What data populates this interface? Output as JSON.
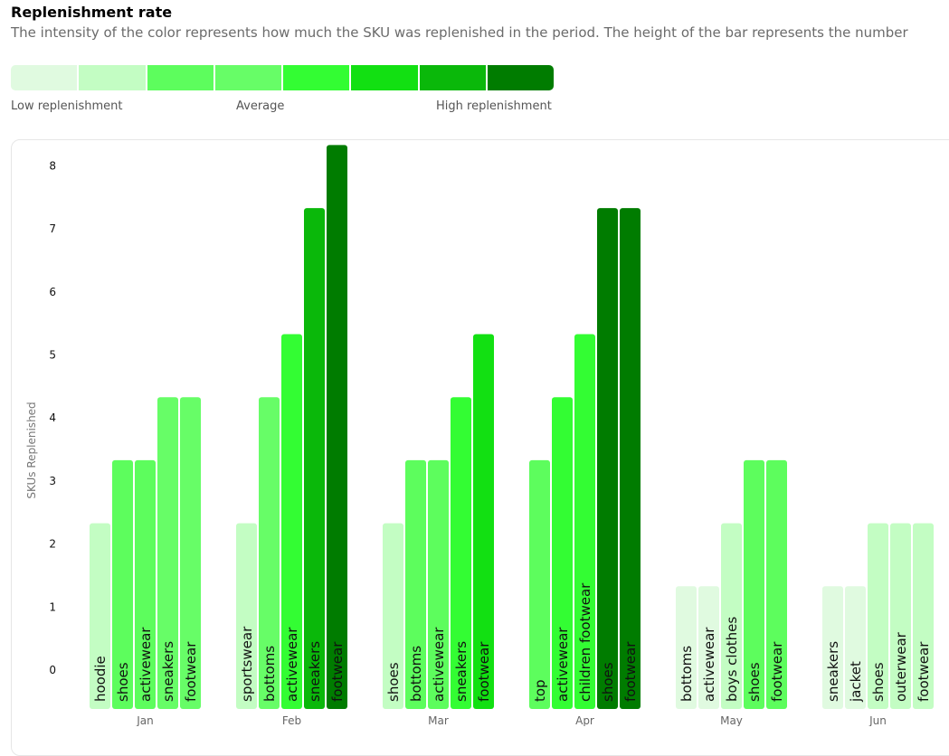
{
  "header": {
    "title": "Replenishment rate",
    "subtitle": "The intensity of the color represents how much the SKU was replenished in the period. The height of the bar represents the number"
  },
  "legend": {
    "colors": [
      "#e0fae0",
      "#c3fdc3",
      "#5dfd5d",
      "#67fd67",
      "#33fd33",
      "#12e012",
      "#0ab80a",
      "#007c00"
    ],
    "low_label": "Low replenishment",
    "mid_label": "Average",
    "high_label": "High replenishment"
  },
  "chart_data": {
    "type": "bar",
    "ylabel": "SKUs Replenished",
    "yticks": [
      0,
      1,
      2,
      3,
      4,
      5,
      6,
      7,
      8
    ],
    "ylim": [
      0,
      8
    ],
    "groups": [
      {
        "month": "Jan",
        "bars": [
          {
            "label": "hoodie",
            "value": 2,
            "color": "#c3fdc3"
          },
          {
            "label": "shoes",
            "value": 3,
            "color": "#5dfd5d"
          },
          {
            "label": "activewear",
            "value": 3,
            "color": "#5dfd5d"
          },
          {
            "label": "sneakers",
            "value": 4,
            "color": "#67fd67"
          },
          {
            "label": "footwear",
            "value": 4,
            "color": "#67fd67"
          }
        ]
      },
      {
        "month": "Feb",
        "bars": [
          {
            "label": "sportswear",
            "value": 2,
            "color": "#c3fdc3"
          },
          {
            "label": "bottoms",
            "value": 4,
            "color": "#67fd67"
          },
          {
            "label": "activewear",
            "value": 5,
            "color": "#33fd33"
          },
          {
            "label": "sneakers",
            "value": 7,
            "color": "#0ab80a"
          },
          {
            "label": "footwear",
            "value": 8,
            "color": "#007c00"
          }
        ]
      },
      {
        "month": "Mar",
        "bars": [
          {
            "label": "shoes",
            "value": 2,
            "color": "#c3fdc3"
          },
          {
            "label": "bottoms",
            "value": 3,
            "color": "#5dfd5d"
          },
          {
            "label": "activewear",
            "value": 3,
            "color": "#5dfd5d"
          },
          {
            "label": "sneakers",
            "value": 4,
            "color": "#33fd33"
          },
          {
            "label": "footwear",
            "value": 5,
            "color": "#12e012"
          }
        ]
      },
      {
        "month": "Apr",
        "bars": [
          {
            "label": "top",
            "value": 3,
            "color": "#5dfd5d"
          },
          {
            "label": "activewear",
            "value": 4,
            "color": "#33fd33"
          },
          {
            "label": "children footwear",
            "value": 5,
            "color": "#33fd33"
          },
          {
            "label": "shoes",
            "value": 7,
            "color": "#007c00"
          },
          {
            "label": "footwear",
            "value": 7,
            "color": "#007c00"
          }
        ]
      },
      {
        "month": "May",
        "bars": [
          {
            "label": "bottoms",
            "value": 1,
            "color": "#e0fae0"
          },
          {
            "label": "activewear",
            "value": 1,
            "color": "#e0fae0"
          },
          {
            "label": "boys clothes",
            "value": 2,
            "color": "#c3fdc3"
          },
          {
            "label": "shoes",
            "value": 3,
            "color": "#5dfd5d"
          },
          {
            "label": "footwear",
            "value": 3,
            "color": "#5dfd5d"
          }
        ]
      },
      {
        "month": "Jun",
        "bars": [
          {
            "label": "sneakers",
            "value": 1,
            "color": "#e0fae0"
          },
          {
            "label": "jacket",
            "value": 1,
            "color": "#e0fae0"
          },
          {
            "label": "shoes",
            "value": 2,
            "color": "#c3fdc3"
          },
          {
            "label": "outerwear",
            "value": 2,
            "color": "#c3fdc3"
          },
          {
            "label": "footwear",
            "value": 2,
            "color": "#c3fdc3"
          }
        ]
      }
    ]
  }
}
